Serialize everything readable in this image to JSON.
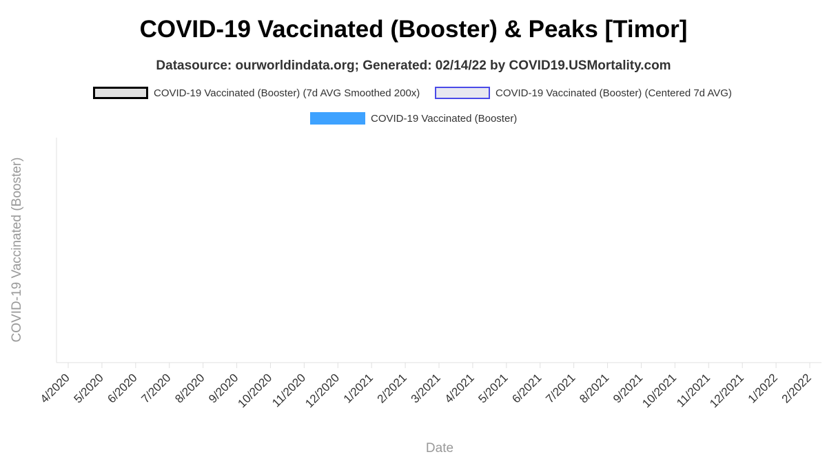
{
  "chart_data": {
    "type": "line",
    "title": "COVID-19 Vaccinated (Booster) & Peaks [Timor]",
    "subtitle": "Datasource: ourworldindata.org; Generated: 02/14/22 by COVID19.USMortality.com",
    "xlabel": "Date",
    "ylabel": "COVID-19 Vaccinated (Booster)",
    "x_ticks": [
      "4/2020",
      "5/2020",
      "6/2020",
      "7/2020",
      "8/2020",
      "9/2020",
      "10/2020",
      "11/2020",
      "12/2020",
      "1/2021",
      "2/2021",
      "3/2021",
      "4/2021",
      "5/2021",
      "6/2021",
      "7/2021",
      "8/2021",
      "9/2021",
      "10/2021",
      "11/2021",
      "12/2021",
      "1/2022",
      "2/2022"
    ],
    "legend_position": "top",
    "grid": false,
    "series": [
      {
        "name": "COVID-19 Vaccinated (Booster) (7d AVG Smoothed 200x)",
        "type": "line",
        "color": "#000000",
        "fill": "#e0e0e0",
        "values": []
      },
      {
        "name": "COVID-19 Vaccinated (Booster) (Centered 7d AVG)",
        "type": "line",
        "color": "#4a4ae8",
        "fill": "#e8e8f0",
        "values": []
      },
      {
        "name": "COVID-19 Vaccinated (Booster)",
        "type": "bar",
        "color": "#3ea2ff",
        "values": []
      }
    ]
  }
}
